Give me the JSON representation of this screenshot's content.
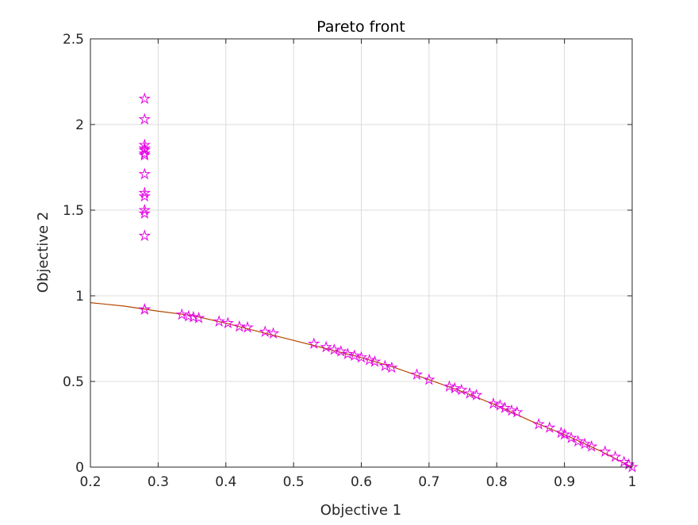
{
  "chart_data": {
    "type": "scatter",
    "title": "Pareto front",
    "xlabel": "Objective 1",
    "ylabel": "Objective 2",
    "xlim": [
      0.2,
      1
    ],
    "ylim": [
      0,
      2.5
    ],
    "grid": true,
    "x_ticks": [
      "0.2",
      "0.3",
      "0.4",
      "0.5",
      "0.6",
      "0.7",
      "0.8",
      "0.9",
      "1"
    ],
    "y_ticks": [
      "0",
      "0.5",
      "1",
      "1.5",
      "2",
      "2.5"
    ],
    "colors": {
      "marker": "#e600e6",
      "curve": "#b34700",
      "grid": "#dcdcdc",
      "axis": "#262626"
    },
    "marker": "pentagram",
    "curve": {
      "x": [
        0.2,
        0.25,
        0.3,
        0.35,
        0.4,
        0.45,
        0.5,
        0.55,
        0.6,
        0.65,
        0.7,
        0.75,
        0.8,
        0.85,
        0.9,
        0.95,
        1.0
      ],
      "y": [
        0.96,
        0.94,
        0.91,
        0.885,
        0.84,
        0.79,
        0.74,
        0.69,
        0.64,
        0.58,
        0.51,
        0.44,
        0.36,
        0.27,
        0.19,
        0.1,
        0.0
      ]
    },
    "series": [
      {
        "x": [
          0.28,
          0.28,
          0.28,
          0.28,
          0.28,
          0.28,
          0.28,
          0.28,
          0.28,
          0.28,
          0.28,
          0.28,
          0.28,
          0.28,
          0.28,
          0.335,
          0.345,
          0.352,
          0.36,
          0.39,
          0.403,
          0.42,
          0.432,
          0.458,
          0.47,
          0.53,
          0.548,
          0.56,
          0.57,
          0.58,
          0.59,
          0.6,
          0.612,
          0.62,
          0.635,
          0.645,
          0.682,
          0.7,
          0.73,
          0.738,
          0.748,
          0.76,
          0.77,
          0.795,
          0.805,
          0.812,
          0.822,
          0.83,
          0.862,
          0.878,
          0.895,
          0.9,
          0.91,
          0.92,
          0.93,
          0.94,
          0.96,
          0.975,
          0.988,
          0.995,
          1.0
        ],
        "y": [
          2.15,
          2.03,
          1.88,
          1.86,
          1.85,
          1.83,
          1.82,
          1.71,
          1.6,
          1.58,
          1.5,
          1.48,
          1.35,
          0.92,
          0.92,
          0.89,
          0.88,
          0.875,
          0.87,
          0.85,
          0.84,
          0.82,
          0.815,
          0.79,
          0.78,
          0.72,
          0.7,
          0.685,
          0.675,
          0.66,
          0.65,
          0.64,
          0.625,
          0.615,
          0.59,
          0.58,
          0.54,
          0.51,
          0.47,
          0.46,
          0.45,
          0.43,
          0.42,
          0.37,
          0.36,
          0.345,
          0.33,
          0.32,
          0.25,
          0.23,
          0.2,
          0.19,
          0.17,
          0.15,
          0.135,
          0.12,
          0.09,
          0.06,
          0.03,
          0.015,
          0.0
        ]
      }
    ]
  }
}
